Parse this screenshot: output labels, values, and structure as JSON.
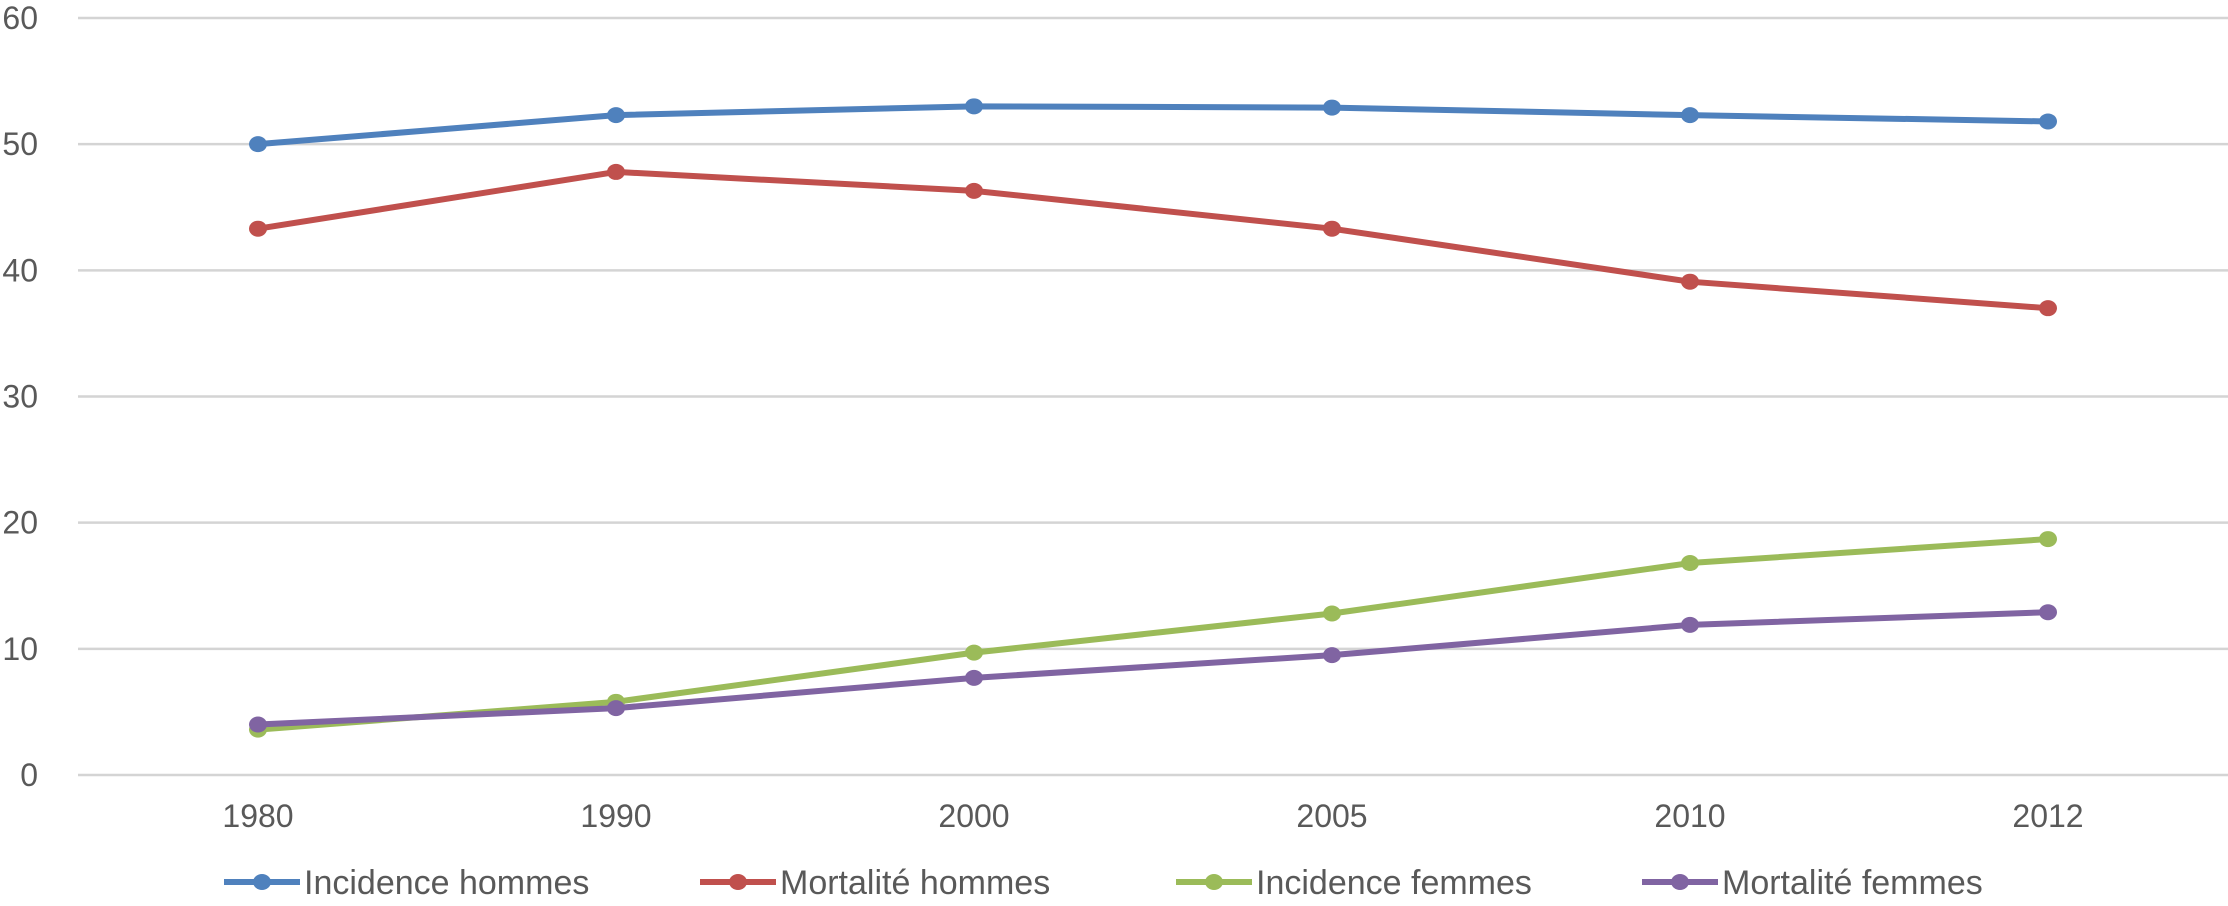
{
  "chart_data": {
    "type": "line",
    "title": "",
    "xlabel": "",
    "ylabel": "",
    "categories": [
      "1980",
      "1990",
      "2000",
      "2005",
      "2010",
      "2012"
    ],
    "ylim": [
      0,
      60
    ],
    "yticks": [
      0,
      10,
      20,
      30,
      40,
      50,
      60
    ],
    "grid": true,
    "legend_position": "bottom",
    "series": [
      {
        "name": "Incidence hommes",
        "color": "#4f81bd",
        "values": [
          50.0,
          52.3,
          53.0,
          52.9,
          52.3,
          51.8
        ]
      },
      {
        "name": "Mortalité hommes",
        "color": "#c0504d",
        "values": [
          43.3,
          47.8,
          46.3,
          43.3,
          39.1,
          37.0
        ]
      },
      {
        "name": "Incidence femmes",
        "color": "#9bbb59",
        "values": [
          3.6,
          5.8,
          9.7,
          12.8,
          16.8,
          18.7
        ]
      },
      {
        "name": "Mortalité femmes",
        "color": "#8064a2",
        "values": [
          4.0,
          5.3,
          7.7,
          9.5,
          11.9,
          12.9
        ]
      }
    ]
  }
}
